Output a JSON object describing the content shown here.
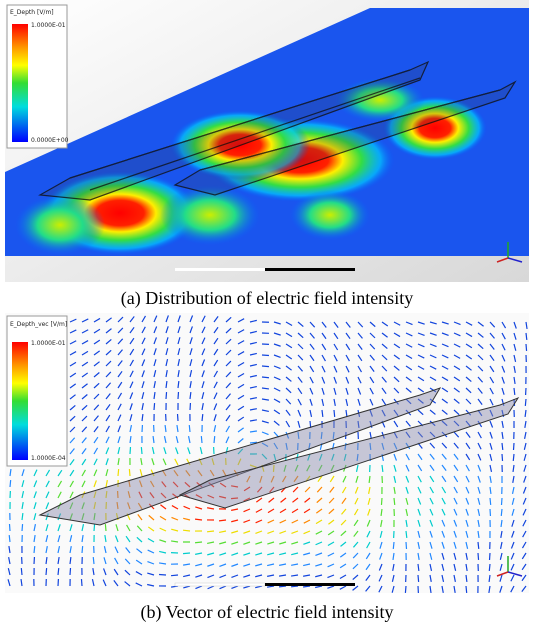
{
  "panels": [
    {
      "legend_title": "E_Depth [V/m]",
      "legend_max": "1.0000E-01",
      "legend_min": "0.0000E+00",
      "caption": "(a) Distribution of electric field intensity"
    },
    {
      "legend_title": "E_Depth_vec [V/m]",
      "legend_max": "1.0000E-01",
      "legend_min": "1.0000E-04",
      "caption": "(b) Vector of electric field intensity"
    }
  ]
}
